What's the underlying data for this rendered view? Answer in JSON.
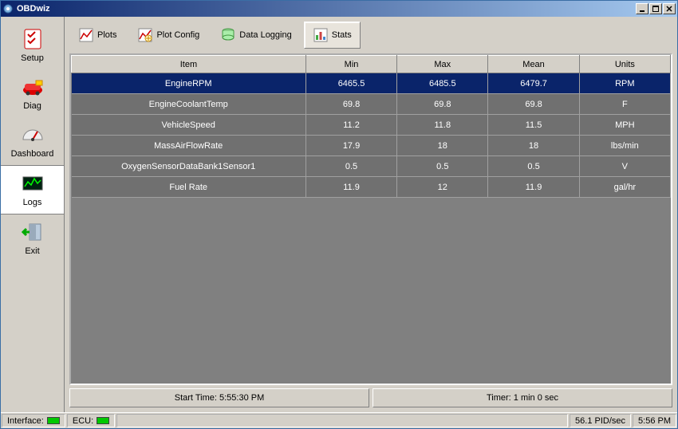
{
  "window": {
    "title": "OBDwiz"
  },
  "sidebar": {
    "items": [
      {
        "label": "Setup",
        "icon": "setup",
        "selected": false
      },
      {
        "label": "Diag",
        "icon": "diag",
        "selected": false
      },
      {
        "label": "Dashboard",
        "icon": "dashboard",
        "selected": false
      },
      {
        "label": "Logs",
        "icon": "logs",
        "selected": true
      },
      {
        "label": "Exit",
        "icon": "exit",
        "selected": false
      }
    ]
  },
  "toolbar": {
    "buttons": [
      {
        "label": "Plots",
        "icon": "plots",
        "selected": false
      },
      {
        "label": "Plot Config",
        "icon": "plotconfig",
        "selected": false
      },
      {
        "label": "Data Logging",
        "icon": "datalogging",
        "selected": false
      },
      {
        "label": "Stats",
        "icon": "stats",
        "selected": true
      }
    ]
  },
  "table": {
    "columns": [
      "Item",
      "Min",
      "Max",
      "Mean",
      "Units"
    ],
    "rows": [
      {
        "item": "EngineRPM",
        "min": "6465.5",
        "max": "6485.5",
        "mean": "6479.7",
        "units": "RPM",
        "selected": true
      },
      {
        "item": "EngineCoolantTemp",
        "min": "69.8",
        "max": "69.8",
        "mean": "69.8",
        "units": "F",
        "selected": false
      },
      {
        "item": "VehicleSpeed",
        "min": "11.2",
        "max": "11.8",
        "mean": "11.5",
        "units": "MPH",
        "selected": false
      },
      {
        "item": "MassAirFlowRate",
        "min": "17.9",
        "max": "18",
        "mean": "18",
        "units": "lbs/min",
        "selected": false
      },
      {
        "item": "OxygenSensorDataBank1Sensor1",
        "min": "0.5",
        "max": "0.5",
        "mean": "0.5",
        "units": "V",
        "selected": false
      },
      {
        "item": "Fuel Rate",
        "min": "11.9",
        "max": "12",
        "mean": "11.9",
        "units": "gal/hr",
        "selected": false
      }
    ]
  },
  "footer": {
    "start_time": "Start Time: 5:55:30 PM",
    "timer": "Timer: 1 min 0 sec"
  },
  "statusbar": {
    "interface_label": "Interface:",
    "ecu_label": "ECU:",
    "pid_rate": "56.1 PID/sec",
    "clock": "5:56 PM"
  },
  "colors": {
    "titlebar_start": "#0a246a",
    "titlebar_end": "#a6caf0",
    "bg": "#d4d0c8",
    "panel_bg": "#808080",
    "row_bg": "#707070",
    "row_selected": "#0a246a",
    "led_green": "#00c800"
  }
}
